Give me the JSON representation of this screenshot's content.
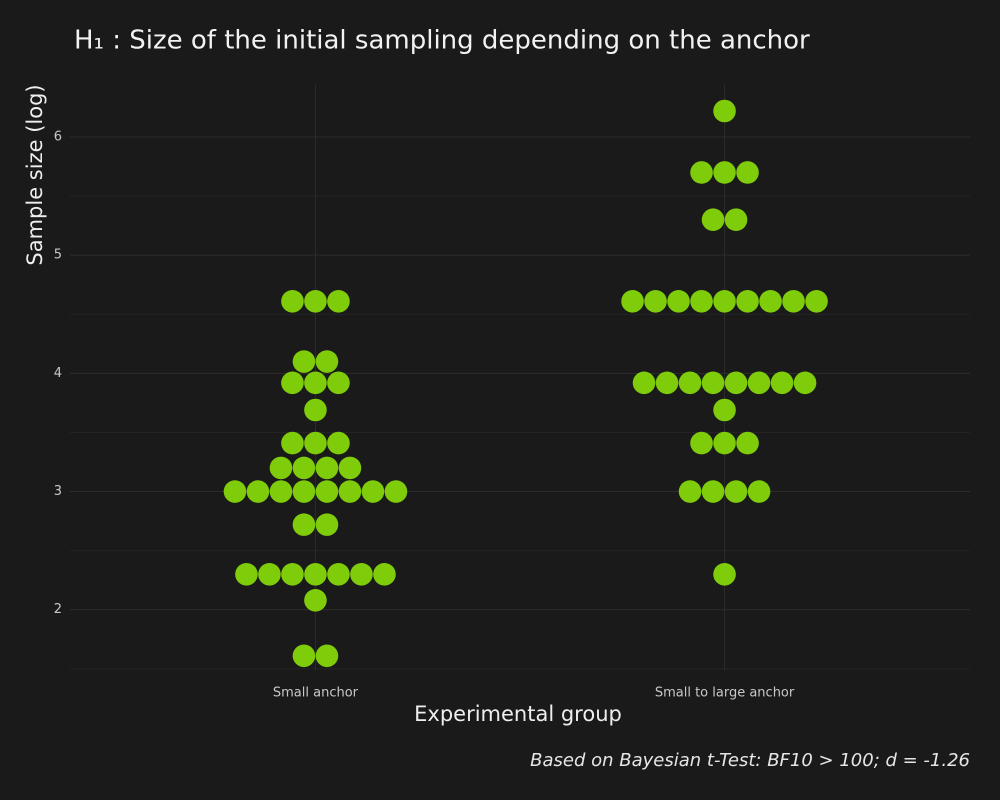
{
  "chart_data": {
    "type": "dotplot",
    "title": "H₁ : Size of the initial sampling depending on the anchor",
    "x_label": "Experimental group",
    "y_label": "Sample size (log)",
    "caption": "Based on Bayesian t-Test: BF10 > 100; d = -1.26",
    "categories": [
      "Small anchor",
      "Small to large anchor"
    ],
    "values": [
      [
        4.61,
        4.61,
        4.61,
        4.1,
        4.1,
        3.92,
        3.92,
        3.92,
        3.69,
        3.41,
        3.41,
        3.41,
        3.2,
        3.2,
        3.2,
        3.2,
        3.0,
        3.0,
        3.0,
        3.0,
        3.0,
        3.0,
        3.0,
        3.0,
        2.72,
        2.72,
        2.3,
        2.3,
        2.3,
        2.3,
        2.3,
        2.3,
        2.3,
        2.08,
        1.61,
        1.61
      ],
      [
        6.22,
        5.7,
        5.7,
        5.7,
        5.3,
        5.3,
        4.61,
        4.61,
        4.61,
        4.61,
        4.61,
        4.61,
        4.61,
        4.61,
        4.61,
        3.92,
        3.92,
        3.92,
        3.92,
        3.92,
        3.92,
        3.92,
        3.92,
        3.69,
        3.41,
        3.41,
        3.41,
        3.0,
        3.0,
        3.0,
        3.0,
        2.3
      ]
    ],
    "color": "#7fcc0a",
    "ylim": [
      1.49,
      6.44
    ],
    "yticks": [
      2,
      3,
      4,
      5,
      6
    ],
    "minor_yticks": [
      1.5,
      2.5,
      3.5,
      4.5,
      5.5
    ],
    "grid": true
  }
}
